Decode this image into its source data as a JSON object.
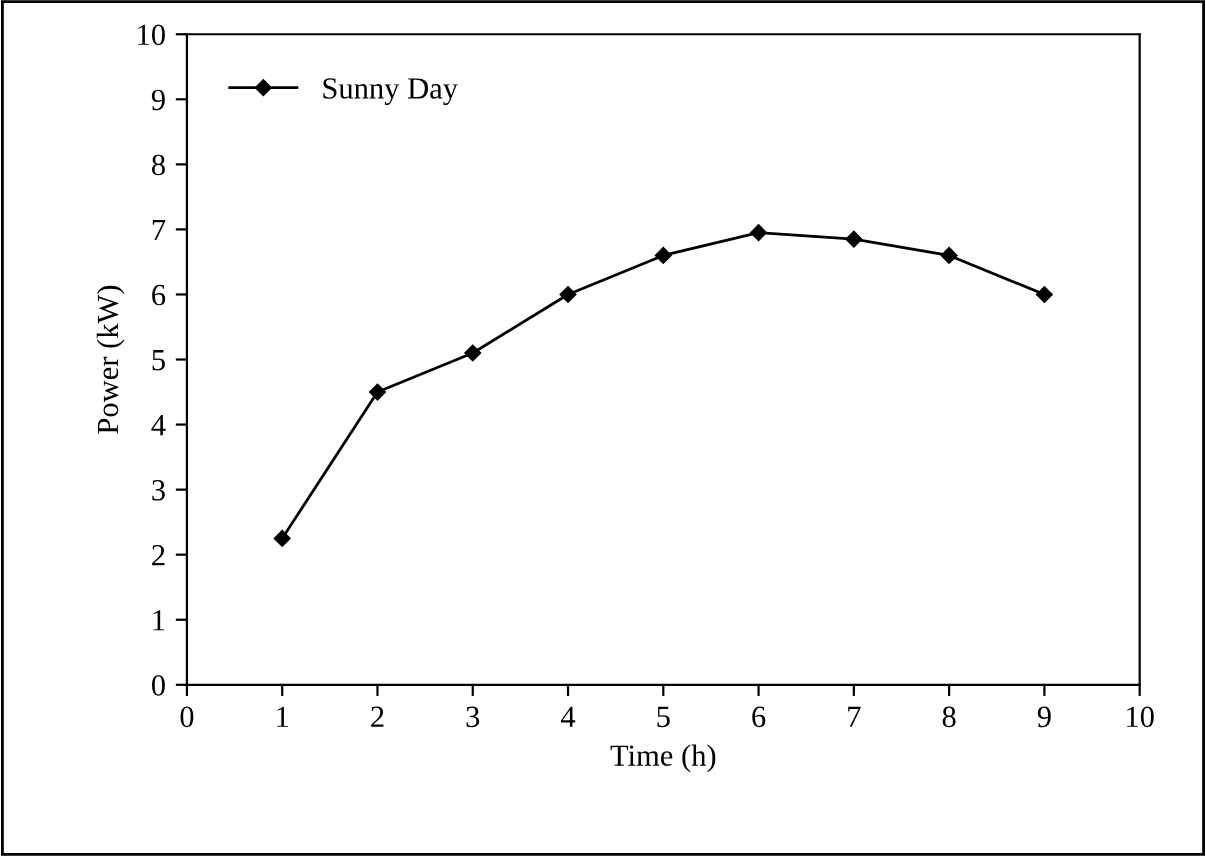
{
  "chart_data": {
    "type": "line",
    "xlabel": "Time (h)",
    "ylabel": "Power (kW)",
    "x": [
      1,
      2,
      3,
      4,
      5,
      6,
      7,
      8,
      9
    ],
    "series": [
      {
        "name": "Sunny Day",
        "color": "#000000",
        "values": [
          2.25,
          4.5,
          5.1,
          6.0,
          6.6,
          6.95,
          6.85,
          6.6,
          6.0
        ]
      }
    ],
    "xlim": [
      0,
      10
    ],
    "xticks": [
      0,
      1,
      2,
      3,
      4,
      5,
      6,
      7,
      8,
      9,
      10
    ],
    "ylim": [
      0,
      10
    ],
    "yticks": [
      0,
      1,
      2,
      3,
      4,
      5,
      6,
      7,
      8,
      9,
      10
    ],
    "grid": false,
    "legend": "top left",
    "marker": "diamond",
    "line_style": "solid"
  }
}
